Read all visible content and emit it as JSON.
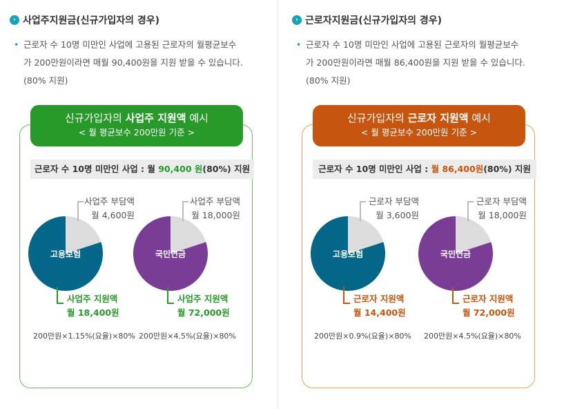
{
  "left": {
    "heading": "사업주지원금(신규가입자의 경우)",
    "desc_line1": "근로자 수 10명 미만인 사업에 고용된 근로자의 월평균보수",
    "desc_line2": "가 200만원이라면 매월 90,400원을 지원 받을 수 있습니다.",
    "desc_line3": "(80% 지원)",
    "title_prefix": "신규가입자의 ",
    "title_bold": "사업주 지원액",
    "title_suffix": " 예시",
    "subtitle": "< 월 평균보수 200만원 기준 >",
    "bar_prefix": "근로자 수 10명 미만인 사업 : ",
    "bar_amount_pre": "월 ",
    "bar_amount": "90,400 원",
    "bar_suffix": "(80%) 지원",
    "pie1": {
      "name": "고용보험",
      "top_label": "사업주 부담액",
      "top_value": "월 4,600원",
      "bottom_label": "사업주 지원액",
      "bottom_value": "월 18,400원",
      "formula": "200만원×1.15%(요율)×80%",
      "support_fraction": 0.8
    },
    "pie2": {
      "name": "국민연금",
      "top_label": "사업주 부담액",
      "top_value": "월 18,000원",
      "bottom_label": "사업주 지원액",
      "bottom_value": "월 72,000원",
      "formula": "200만원×4.5%(요율)×80%",
      "support_fraction": 0.8
    }
  },
  "right": {
    "heading": "근로자지원금(신규가입자의 경우)",
    "desc_line1": "근로자 수 10명 미만인 사업에 고용된 근로자의 월평균보수",
    "desc_line2": "가 200만원이라면 매월 86,400원을 지원 받을 수 있습니다.",
    "desc_line3": "(80% 지원)",
    "title_prefix": "신규가입자의 ",
    "title_bold": "근로자 지원액",
    "title_suffix": " 예시",
    "subtitle": "< 월 평균보수 200만원 기준 >",
    "bar_prefix": "근로자 수 10명 미만인 사업 : ",
    "bar_amount_pre": "",
    "bar_amount": "월 86,400원",
    "bar_suffix": "(80%) 지원",
    "pie1": {
      "name": "고용보험",
      "top_label": "근로자 부담액",
      "top_value": "월 3,600원",
      "bottom_label": "근로자 지원액",
      "bottom_value": "월 14,400원",
      "formula": "200만원×0.9%(요율)×80%",
      "support_fraction": 0.8
    },
    "pie2": {
      "name": "국민연금",
      "top_label": "근로자 부담액",
      "top_value": "월 18,000원",
      "bottom_label": "근로자 지원액",
      "bottom_value": "월 72,000원",
      "formula": "200만원×4.5%(요율)×80%",
      "support_fraction": 0.8
    }
  },
  "colors": {
    "employment_insurance": "#046789",
    "national_pension": "#7a3d96",
    "burden": "#dcdcdc",
    "left_accent": "#279a2a",
    "right_accent": "#c5550f"
  }
}
